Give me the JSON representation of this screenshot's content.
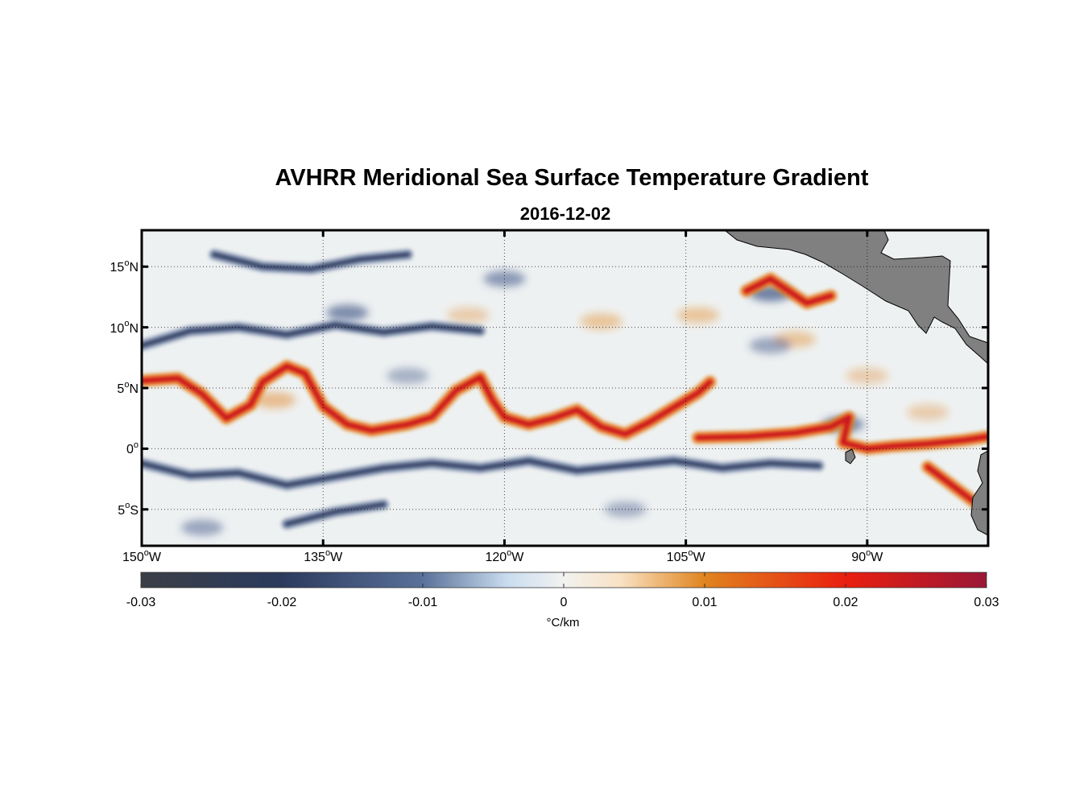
{
  "title": "AVHRR Meridional Sea Surface Temperature Gradient",
  "subtitle": "2016-12-02",
  "map": {
    "lon_range": [
      -150,
      -80
    ],
    "lat_range": [
      -8,
      18
    ],
    "gridlines": "dotted",
    "land_color": "#808080",
    "lat_ticks": [
      {
        "value": 15,
        "deg": "15",
        "hemi": "N"
      },
      {
        "value": 10,
        "deg": "10",
        "hemi": "N"
      },
      {
        "value": 5,
        "deg": "5",
        "hemi": "N"
      },
      {
        "value": 0,
        "deg": "0",
        "hemi": ""
      },
      {
        "value": -5,
        "deg": "5",
        "hemi": "S"
      }
    ],
    "lon_ticks": [
      {
        "value": -150,
        "deg": "150",
        "hemi": "W"
      },
      {
        "value": -135,
        "deg": "135",
        "hemi": "W"
      },
      {
        "value": -120,
        "deg": "120",
        "hemi": "W"
      },
      {
        "value": -105,
        "deg": "105",
        "hemi": "W"
      },
      {
        "value": -90,
        "deg": "90",
        "hemi": "W"
      }
    ],
    "field_features": [
      {
        "kind": "front",
        "sign": "positive",
        "points": [
          [
            -150,
            5.6
          ],
          [
            -147,
            5.8
          ],
          [
            -145,
            4.5
          ],
          [
            -143,
            2.5
          ],
          [
            -141,
            3.6
          ],
          [
            -140,
            5.5
          ],
          [
            -138,
            6.8
          ],
          [
            -136.5,
            6.2
          ],
          [
            -135,
            3.5
          ],
          [
            -133,
            2
          ],
          [
            -131,
            1.5
          ],
          [
            -128,
            2
          ],
          [
            -126,
            2.6
          ],
          [
            -124,
            4.8
          ],
          [
            -122,
            5.9
          ],
          [
            -121,
            4
          ],
          [
            -120,
            2.6
          ],
          [
            -118,
            2
          ],
          [
            -116,
            2.5
          ],
          [
            -114,
            3.2
          ],
          [
            -112,
            1.8
          ],
          [
            -110,
            1.2
          ],
          [
            -108,
            2.2
          ],
          [
            -106,
            3.4
          ],
          [
            -104,
            4.6
          ],
          [
            -103,
            5.5
          ]
        ]
      },
      {
        "kind": "front",
        "sign": "positive",
        "points": [
          [
            -104,
            0.9
          ],
          [
            -100,
            1
          ],
          [
            -96,
            1.3
          ],
          [
            -93,
            1.8
          ],
          [
            -91.5,
            2.6
          ],
          [
            -92,
            0.5
          ],
          [
            -90,
            0
          ],
          [
            -88,
            0.2
          ],
          [
            -85,
            0.4
          ],
          [
            -82,
            0.7
          ],
          [
            -80,
            1
          ]
        ]
      },
      {
        "kind": "front",
        "sign": "positive",
        "points": [
          [
            -100,
            13
          ],
          [
            -98,
            14
          ],
          [
            -95,
            12
          ],
          [
            -93,
            12.6
          ]
        ]
      },
      {
        "kind": "front",
        "sign": "positive",
        "points": [
          [
            -85,
            -1.5
          ],
          [
            -83,
            -3
          ],
          [
            -81,
            -4.5
          ]
        ]
      },
      {
        "kind": "front",
        "sign": "negative",
        "points": [
          [
            -150,
            -1.2
          ],
          [
            -146,
            -2.2
          ],
          [
            -142,
            -2
          ],
          [
            -138,
            -3
          ],
          [
            -134,
            -2.3
          ],
          [
            -130,
            -1.6
          ],
          [
            -126,
            -1.2
          ],
          [
            -122,
            -1.6
          ],
          [
            -118,
            -1
          ],
          [
            -114,
            -1.8
          ],
          [
            -110,
            -1.4
          ],
          [
            -106,
            -1
          ],
          [
            -102,
            -1.6
          ],
          [
            -98,
            -1.2
          ],
          [
            -94,
            -1.4
          ]
        ]
      },
      {
        "kind": "front",
        "sign": "negative",
        "points": [
          [
            -150,
            8.5
          ],
          [
            -146,
            9.7
          ],
          [
            -142,
            10
          ],
          [
            -138,
            9.4
          ],
          [
            -134,
            10.2
          ],
          [
            -130,
            9.6
          ],
          [
            -126,
            10.1
          ],
          [
            -122,
            9.7
          ]
        ]
      },
      {
        "kind": "front",
        "sign": "negative",
        "points": [
          [
            -138,
            -6.2
          ],
          [
            -134,
            -5.2
          ],
          [
            -130,
            -4.6
          ]
        ]
      },
      {
        "kind": "front",
        "sign": "negative",
        "points": [
          [
            -144,
            16
          ],
          [
            -140,
            15
          ],
          [
            -136,
            14.8
          ],
          [
            -132,
            15.6
          ],
          [
            -128,
            16
          ]
        ]
      }
    ],
    "field_patches": [
      {
        "lon": -123,
        "lat": 11,
        "sign": "positive",
        "level": 0.4
      },
      {
        "lon": -112,
        "lat": 10.5,
        "sign": "positive",
        "level": 0.5
      },
      {
        "lon": -104,
        "lat": 11,
        "sign": "positive",
        "level": 0.5
      },
      {
        "lon": -96,
        "lat": 9,
        "sign": "positive",
        "level": 0.5
      },
      {
        "lon": -90,
        "lat": 6,
        "sign": "positive",
        "level": 0.4
      },
      {
        "lon": -85,
        "lat": 3,
        "sign": "positive",
        "level": 0.4
      },
      {
        "lon": -133,
        "lat": 11.2,
        "sign": "negative",
        "level": 0.8
      },
      {
        "lon": -120,
        "lat": 14,
        "sign": "negative",
        "level": 0.7
      },
      {
        "lon": -98,
        "lat": 8.5,
        "sign": "negative",
        "level": 0.6
      },
      {
        "lon": -92,
        "lat": 2,
        "sign": "negative",
        "level": 0.8
      },
      {
        "lon": -98,
        "lat": 12.8,
        "sign": "negative",
        "level": 0.9
      },
      {
        "lon": -139,
        "lat": 4,
        "sign": "positive",
        "level": 0.6
      },
      {
        "lon": -145,
        "lat": -6.5,
        "sign": "negative",
        "level": 0.6
      },
      {
        "lon": -110,
        "lat": -5,
        "sign": "negative",
        "level": 0.5
      },
      {
        "lon": -128,
        "lat": 6,
        "sign": "negative",
        "level": 0.5
      }
    ]
  },
  "colorbar": {
    "range": [
      -0.03,
      0.03
    ],
    "tick_labels": [
      "-0.03",
      "-0.02",
      "-0.01",
      "0",
      "0.01",
      "0.02",
      "0.03"
    ],
    "tick_values": [
      -0.03,
      -0.02,
      -0.01,
      0,
      0.01,
      0.02,
      0.03
    ],
    "units": "°C/km",
    "color_stops": [
      {
        "v": -0.03,
        "c": "#3a3f46"
      },
      {
        "v": -0.02,
        "c": "#2b3a5e"
      },
      {
        "v": -0.01,
        "c": "#5a7199"
      },
      {
        "v": -0.004,
        "c": "#c9dcef"
      },
      {
        "v": 0,
        "c": "#f2f2f0"
      },
      {
        "v": 0.004,
        "c": "#f9e2c4"
      },
      {
        "v": 0.01,
        "c": "#e0841e"
      },
      {
        "v": 0.02,
        "c": "#ea1e10"
      },
      {
        "v": 0.03,
        "c": "#9a1736"
      }
    ]
  }
}
